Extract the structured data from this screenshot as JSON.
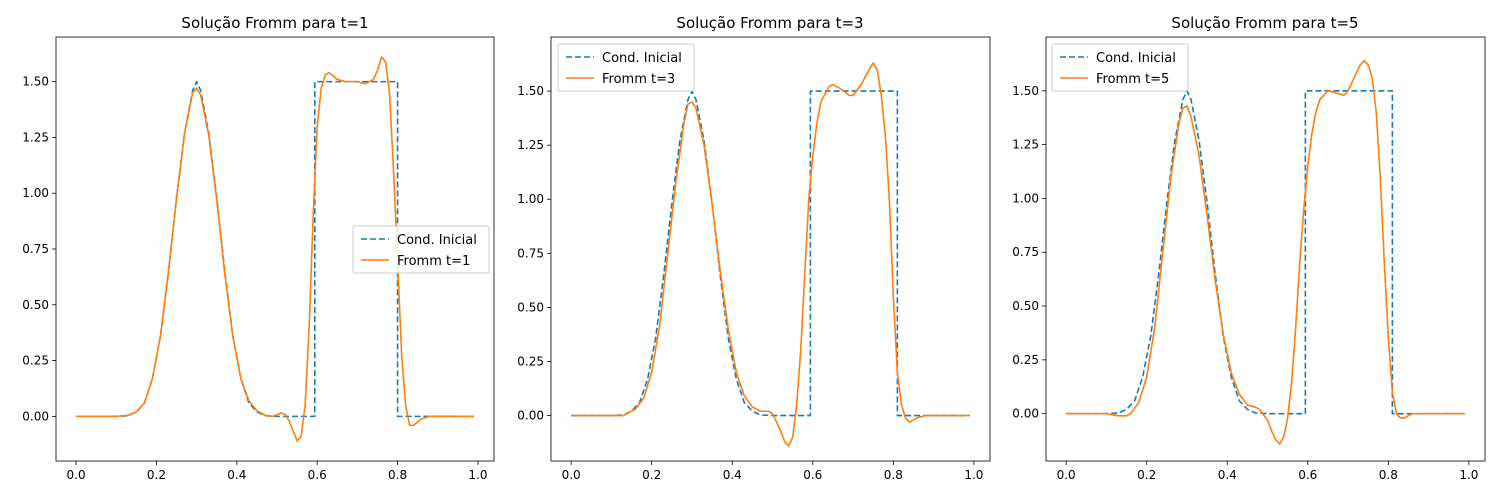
{
  "colors": {
    "initial": "#1f77b4",
    "fromm": "#ff7f0e",
    "background": "#ffffff",
    "axis": "#000000"
  },
  "chart_data": [
    {
      "type": "line",
      "title": "Solução Fromm para t=1",
      "xlabel": "",
      "ylabel": "",
      "xlim": [
        -0.05,
        1.04
      ],
      "ylim": [
        -0.2,
        1.7
      ],
      "xticks": [
        0.0,
        0.2,
        0.4,
        0.6,
        0.8,
        1.0
      ],
      "xtick_labels": [
        "0.0",
        "0.2",
        "0.4",
        "0.6",
        "0.8",
        "1.0"
      ],
      "yticks": [
        0.0,
        0.25,
        0.5,
        0.75,
        1.0,
        1.25,
        1.5
      ],
      "ytick_labels": [
        "0.00",
        "0.25",
        "0.50",
        "0.75",
        "1.00",
        "1.25",
        "1.50"
      ],
      "grid": false,
      "legend_position": "center-right",
      "series": [
        {
          "name": "Cond. Inicial",
          "style": "dashed",
          "color": "#1f77b4",
          "points": [
            [
              0.0,
              0.0
            ],
            [
              0.1,
              0.0
            ],
            [
              0.13,
              0.003
            ],
            [
              0.15,
              0.02
            ],
            [
              0.17,
              0.06
            ],
            [
              0.19,
              0.17
            ],
            [
              0.21,
              0.36
            ],
            [
              0.23,
              0.65
            ],
            [
              0.25,
              0.98
            ],
            [
              0.27,
              1.27
            ],
            [
              0.29,
              1.46
            ],
            [
              0.3,
              1.5
            ],
            [
              0.31,
              1.46
            ],
            [
              0.33,
              1.27
            ],
            [
              0.35,
              0.98
            ],
            [
              0.37,
              0.65
            ],
            [
              0.39,
              0.36
            ],
            [
              0.41,
              0.17
            ],
            [
              0.43,
              0.06
            ],
            [
              0.45,
              0.02
            ],
            [
              0.47,
              0.003
            ],
            [
              0.5,
              0.0
            ],
            [
              0.594,
              0.0
            ],
            [
              0.594,
              1.5
            ],
            [
              0.8,
              1.5
            ],
            [
              0.8,
              0.0
            ],
            [
              0.99,
              0.0
            ]
          ]
        },
        {
          "name": "Fromm t=1",
          "style": "solid",
          "color": "#ff7f0e",
          "points": [
            [
              0.0,
              0.0
            ],
            [
              0.1,
              0.0
            ],
            [
              0.13,
              0.005
            ],
            [
              0.15,
              0.02
            ],
            [
              0.17,
              0.06
            ],
            [
              0.19,
              0.17
            ],
            [
              0.21,
              0.36
            ],
            [
              0.23,
              0.65
            ],
            [
              0.25,
              0.98
            ],
            [
              0.27,
              1.27
            ],
            [
              0.29,
              1.45
            ],
            [
              0.3,
              1.47
            ],
            [
              0.31,
              1.44
            ],
            [
              0.33,
              1.26
            ],
            [
              0.35,
              0.97
            ],
            [
              0.37,
              0.64
            ],
            [
              0.39,
              0.36
            ],
            [
              0.41,
              0.17
            ],
            [
              0.43,
              0.07
            ],
            [
              0.45,
              0.025
            ],
            [
              0.47,
              0.005
            ],
            [
              0.49,
              0.0
            ],
            [
              0.51,
              0.015
            ],
            [
              0.52,
              0.01
            ],
            [
              0.53,
              -0.02
            ],
            [
              0.55,
              -0.11
            ],
            [
              0.56,
              -0.09
            ],
            [
              0.57,
              0.05
            ],
            [
              0.58,
              0.4
            ],
            [
              0.59,
              0.9
            ],
            [
              0.6,
              1.3
            ],
            [
              0.61,
              1.47
            ],
            [
              0.62,
              1.53
            ],
            [
              0.63,
              1.54
            ],
            [
              0.65,
              1.51
            ],
            [
              0.67,
              1.5
            ],
            [
              0.7,
              1.5
            ],
            [
              0.72,
              1.49
            ],
            [
              0.74,
              1.51
            ],
            [
              0.75,
              1.55
            ],
            [
              0.76,
              1.61
            ],
            [
              0.77,
              1.59
            ],
            [
              0.78,
              1.45
            ],
            [
              0.79,
              1.1
            ],
            [
              0.8,
              0.7
            ],
            [
              0.81,
              0.28
            ],
            [
              0.82,
              0.05
            ],
            [
              0.83,
              -0.04
            ],
            [
              0.84,
              -0.04
            ],
            [
              0.86,
              -0.01
            ],
            [
              0.88,
              0.0
            ],
            [
              0.99,
              0.0
            ]
          ]
        }
      ]
    },
    {
      "type": "line",
      "title": "Solução Fromm para t=3",
      "xlabel": "",
      "ylabel": "",
      "xlim": [
        -0.05,
        1.04
      ],
      "ylim": [
        -0.21,
        1.75
      ],
      "xticks": [
        0.0,
        0.2,
        0.4,
        0.6,
        0.8,
        1.0
      ],
      "xtick_labels": [
        "0.0",
        "0.2",
        "0.4",
        "0.6",
        "0.8",
        "1.0"
      ],
      "yticks": [
        0.0,
        0.25,
        0.5,
        0.75,
        1.0,
        1.25,
        1.5
      ],
      "ytick_labels": [
        "0.00",
        "0.25",
        "0.50",
        "0.75",
        "1.00",
        "1.25",
        "1.50"
      ],
      "grid": false,
      "legend_position": "upper-left",
      "series": [
        {
          "name": "Cond. Inicial",
          "style": "dashed",
          "color": "#1f77b4",
          "points": [
            [
              0.0,
              0.0
            ],
            [
              0.1,
              0.0
            ],
            [
              0.13,
              0.003
            ],
            [
              0.15,
              0.02
            ],
            [
              0.17,
              0.06
            ],
            [
              0.19,
              0.17
            ],
            [
              0.21,
              0.36
            ],
            [
              0.23,
              0.65
            ],
            [
              0.25,
              0.98
            ],
            [
              0.27,
              1.27
            ],
            [
              0.29,
              1.46
            ],
            [
              0.3,
              1.5
            ],
            [
              0.31,
              1.46
            ],
            [
              0.33,
              1.27
            ],
            [
              0.35,
              0.98
            ],
            [
              0.37,
              0.65
            ],
            [
              0.39,
              0.36
            ],
            [
              0.41,
              0.17
            ],
            [
              0.43,
              0.06
            ],
            [
              0.45,
              0.02
            ],
            [
              0.47,
              0.003
            ],
            [
              0.5,
              0.0
            ],
            [
              0.594,
              0.0
            ],
            [
              0.594,
              1.5
            ],
            [
              0.81,
              1.5
            ],
            [
              0.81,
              0.0
            ],
            [
              0.99,
              0.0
            ]
          ]
        },
        {
          "name": "Fromm t=3",
          "style": "solid",
          "color": "#ff7f0e",
          "points": [
            [
              0.0,
              0.0
            ],
            [
              0.13,
              0.0
            ],
            [
              0.14,
              0.01
            ],
            [
              0.16,
              0.03
            ],
            [
              0.18,
              0.08
            ],
            [
              0.2,
              0.2
            ],
            [
              0.22,
              0.42
            ],
            [
              0.24,
              0.75
            ],
            [
              0.26,
              1.08
            ],
            [
              0.28,
              1.35
            ],
            [
              0.29,
              1.44
            ],
            [
              0.3,
              1.45
            ],
            [
              0.31,
              1.42
            ],
            [
              0.33,
              1.25
            ],
            [
              0.35,
              0.98
            ],
            [
              0.37,
              0.67
            ],
            [
              0.39,
              0.4
            ],
            [
              0.41,
              0.2
            ],
            [
              0.43,
              0.09
            ],
            [
              0.45,
              0.04
            ],
            [
              0.47,
              0.02
            ],
            [
              0.49,
              0.02
            ],
            [
              0.5,
              0.01
            ],
            [
              0.52,
              -0.07
            ],
            [
              0.53,
              -0.12
            ],
            [
              0.54,
              -0.14
            ],
            [
              0.55,
              -0.1
            ],
            [
              0.56,
              0.05
            ],
            [
              0.57,
              0.3
            ],
            [
              0.58,
              0.65
            ],
            [
              0.59,
              1.0
            ],
            [
              0.6,
              1.2
            ],
            [
              0.61,
              1.35
            ],
            [
              0.62,
              1.45
            ],
            [
              0.64,
              1.52
            ],
            [
              0.65,
              1.53
            ],
            [
              0.67,
              1.51
            ],
            [
              0.69,
              1.48
            ],
            [
              0.7,
              1.48
            ],
            [
              0.72,
              1.53
            ],
            [
              0.74,
              1.6
            ],
            [
              0.75,
              1.63
            ],
            [
              0.76,
              1.6
            ],
            [
              0.77,
              1.48
            ],
            [
              0.78,
              1.3
            ],
            [
              0.79,
              1.0
            ],
            [
              0.8,
              0.55
            ],
            [
              0.81,
              0.2
            ],
            [
              0.82,
              0.05
            ],
            [
              0.83,
              -0.01
            ],
            [
              0.84,
              -0.03
            ],
            [
              0.86,
              -0.01
            ],
            [
              0.88,
              0.0
            ],
            [
              0.99,
              0.0
            ]
          ]
        }
      ]
    },
    {
      "type": "line",
      "title": "Solução Fromm para t=5",
      "xlabel": "",
      "ylabel": "",
      "xlim": [
        -0.05,
        1.04
      ],
      "ylim": [
        -0.22,
        1.75
      ],
      "xticks": [
        0.0,
        0.2,
        0.4,
        0.6,
        0.8,
        1.0
      ],
      "xtick_labels": [
        "0.0",
        "0.2",
        "0.4",
        "0.6",
        "0.8",
        "1.0"
      ],
      "yticks": [
        0.0,
        0.25,
        0.5,
        0.75,
        1.0,
        1.25,
        1.5
      ],
      "ytick_labels": [
        "0.00",
        "0.25",
        "0.50",
        "0.75",
        "1.00",
        "1.25",
        "1.50"
      ],
      "grid": false,
      "legend_position": "upper-left",
      "series": [
        {
          "name": "Cond. Inicial",
          "style": "dashed",
          "color": "#1f77b4",
          "points": [
            [
              0.0,
              0.0
            ],
            [
              0.1,
              0.0
            ],
            [
              0.13,
              0.003
            ],
            [
              0.15,
              0.02
            ],
            [
              0.17,
              0.06
            ],
            [
              0.19,
              0.17
            ],
            [
              0.21,
              0.36
            ],
            [
              0.23,
              0.65
            ],
            [
              0.25,
              0.98
            ],
            [
              0.27,
              1.27
            ],
            [
              0.29,
              1.46
            ],
            [
              0.3,
              1.5
            ],
            [
              0.31,
              1.46
            ],
            [
              0.33,
              1.27
            ],
            [
              0.35,
              0.98
            ],
            [
              0.37,
              0.65
            ],
            [
              0.39,
              0.36
            ],
            [
              0.41,
              0.17
            ],
            [
              0.43,
              0.06
            ],
            [
              0.45,
              0.02
            ],
            [
              0.47,
              0.003
            ],
            [
              0.5,
              0.0
            ],
            [
              0.594,
              0.0
            ],
            [
              0.594,
              1.5
            ],
            [
              0.81,
              1.5
            ],
            [
              0.81,
              0.0
            ],
            [
              0.99,
              0.0
            ]
          ]
        },
        {
          "name": "Fromm t=5",
          "style": "solid",
          "color": "#ff7f0e",
          "points": [
            [
              0.0,
              0.0
            ],
            [
              0.1,
              0.0
            ],
            [
              0.13,
              -0.01
            ],
            [
              0.15,
              -0.01
            ],
            [
              0.16,
              0.0
            ],
            [
              0.18,
              0.05
            ],
            [
              0.2,
              0.17
            ],
            [
              0.22,
              0.4
            ],
            [
              0.24,
              0.75
            ],
            [
              0.26,
              1.1
            ],
            [
              0.28,
              1.35
            ],
            [
              0.29,
              1.42
            ],
            [
              0.3,
              1.43
            ],
            [
              0.31,
              1.38
            ],
            [
              0.33,
              1.2
            ],
            [
              0.35,
              0.92
            ],
            [
              0.37,
              0.62
            ],
            [
              0.39,
              0.37
            ],
            [
              0.41,
              0.19
            ],
            [
              0.43,
              0.09
            ],
            [
              0.45,
              0.04
            ],
            [
              0.47,
              0.03
            ],
            [
              0.48,
              0.02
            ],
            [
              0.5,
              -0.03
            ],
            [
              0.51,
              -0.08
            ],
            [
              0.52,
              -0.12
            ],
            [
              0.53,
              -0.14
            ],
            [
              0.54,
              -0.11
            ],
            [
              0.55,
              -0.02
            ],
            [
              0.56,
              0.15
            ],
            [
              0.57,
              0.4
            ],
            [
              0.58,
              0.7
            ],
            [
              0.59,
              0.95
            ],
            [
              0.6,
              1.15
            ],
            [
              0.61,
              1.3
            ],
            [
              0.62,
              1.4
            ],
            [
              0.63,
              1.46
            ],
            [
              0.65,
              1.5
            ],
            [
              0.67,
              1.49
            ],
            [
              0.69,
              1.48
            ],
            [
              0.7,
              1.5
            ],
            [
              0.72,
              1.58
            ],
            [
              0.73,
              1.62
            ],
            [
              0.74,
              1.64
            ],
            [
              0.75,
              1.62
            ],
            [
              0.76,
              1.56
            ],
            [
              0.77,
              1.4
            ],
            [
              0.78,
              1.1
            ],
            [
              0.79,
              0.7
            ],
            [
              0.8,
              0.35
            ],
            [
              0.81,
              0.1
            ],
            [
              0.82,
              0.0
            ],
            [
              0.83,
              -0.02
            ],
            [
              0.84,
              -0.02
            ],
            [
              0.86,
              0.0
            ],
            [
              0.99,
              0.0
            ]
          ]
        }
      ]
    }
  ]
}
